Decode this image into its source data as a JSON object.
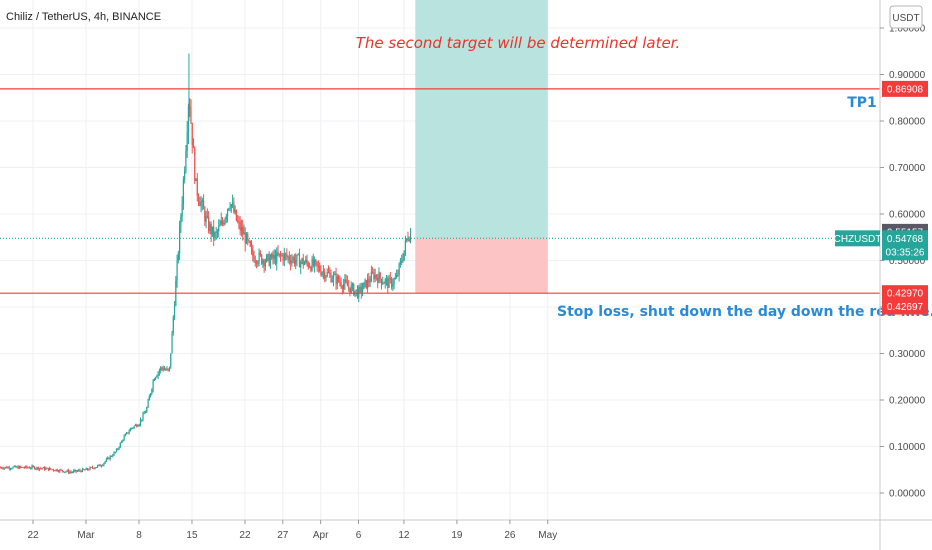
{
  "header": {
    "symbol_title": "Chiliz / TetherUS, 4h, BINANCE"
  },
  "currency_button": "USDT",
  "annotations": {
    "second_target_note": "The second target will be determined later.",
    "tp1_label": "TP1",
    "stop_loss_note": "Stop loss, shut down the day down the red line."
  },
  "price_badges": {
    "tp1": "0.86908",
    "high_marker": "0.55157",
    "ticker": "CHZUSDT",
    "last_price": "0.54768",
    "countdown": "03:35:26",
    "stop_line": "0.42970",
    "stop_lower": "0.42697"
  },
  "colors": {
    "up": "#26a69a",
    "down": "#ef5350",
    "horizontal_line": "#f23c3c",
    "target_zone": "#b9e3df",
    "stop_zone": "#fcc4c4",
    "last_price_line": "#26a69a"
  },
  "chart_data": {
    "type": "candlestick",
    "title": "Chiliz / TetherUS, 4h, BINANCE",
    "y_axis": {
      "ticks": [
        "1.00000",
        "0.90000",
        "0.80000",
        "0.70000",
        "0.60000",
        "0.50000",
        "0.40000",
        "0.30000",
        "0.20000",
        "0.10000",
        "0.00000"
      ],
      "range": [
        -0.05,
        1.05
      ]
    },
    "x_axis": {
      "ticks": [
        {
          "label": "22",
          "day": 0
        },
        {
          "label": "Mar",
          "day": 7
        },
        {
          "label": "8",
          "day": 14
        },
        {
          "label": "15",
          "day": 21
        },
        {
          "label": "22",
          "day": 28
        },
        {
          "label": "27",
          "day": 33
        },
        {
          "label": "Apr",
          "day": 38
        },
        {
          "label": "6",
          "day": 43
        },
        {
          "label": "12",
          "day": 49
        },
        {
          "label": "19",
          "day": 56
        },
        {
          "label": "26",
          "day": 63
        },
        {
          "label": "May",
          "day": 68
        }
      ]
    },
    "price_path": [
      [
        0,
        0.055
      ],
      [
        3,
        0.05
      ],
      [
        5,
        0.045
      ],
      [
        7,
        0.05
      ],
      [
        9,
        0.06
      ],
      [
        11,
        0.09
      ],
      [
        12,
        0.12
      ],
      [
        13,
        0.14
      ],
      [
        14,
        0.15
      ],
      [
        15,
        0.18
      ],
      [
        16,
        0.25
      ],
      [
        17,
        0.27
      ],
      [
        18,
        0.26
      ],
      [
        19,
        0.48
      ],
      [
        20,
        0.7
      ],
      [
        20.6,
        0.86
      ],
      [
        21.5,
        0.66
      ],
      [
        23,
        0.58
      ],
      [
        24,
        0.55
      ],
      [
        25,
        0.58
      ],
      [
        26,
        0.63
      ],
      [
        27,
        0.58
      ],
      [
        28,
        0.55
      ],
      [
        29,
        0.51
      ],
      [
        31,
        0.5
      ],
      [
        33,
        0.51
      ],
      [
        35,
        0.5
      ],
      [
        37,
        0.49
      ],
      [
        39,
        0.47
      ],
      [
        41,
        0.45
      ],
      [
        43,
        0.43
      ],
      [
        44,
        0.45
      ],
      [
        45,
        0.47
      ],
      [
        46,
        0.46
      ],
      [
        47,
        0.45
      ],
      [
        48,
        0.46
      ],
      [
        49,
        0.52
      ],
      [
        49.6,
        0.56
      ],
      [
        50,
        0.548
      ]
    ],
    "levels": {
      "tp1": 0.86908,
      "last_price": 0.54768,
      "high_marker": 0.55157,
      "stop_line": 0.4297,
      "stop_lower": 0.42697
    },
    "position_tool": {
      "entry": 0.54768,
      "target": 0.86908,
      "stop": 0.4297,
      "start_day": 50.5,
      "end_day": 68
    }
  }
}
